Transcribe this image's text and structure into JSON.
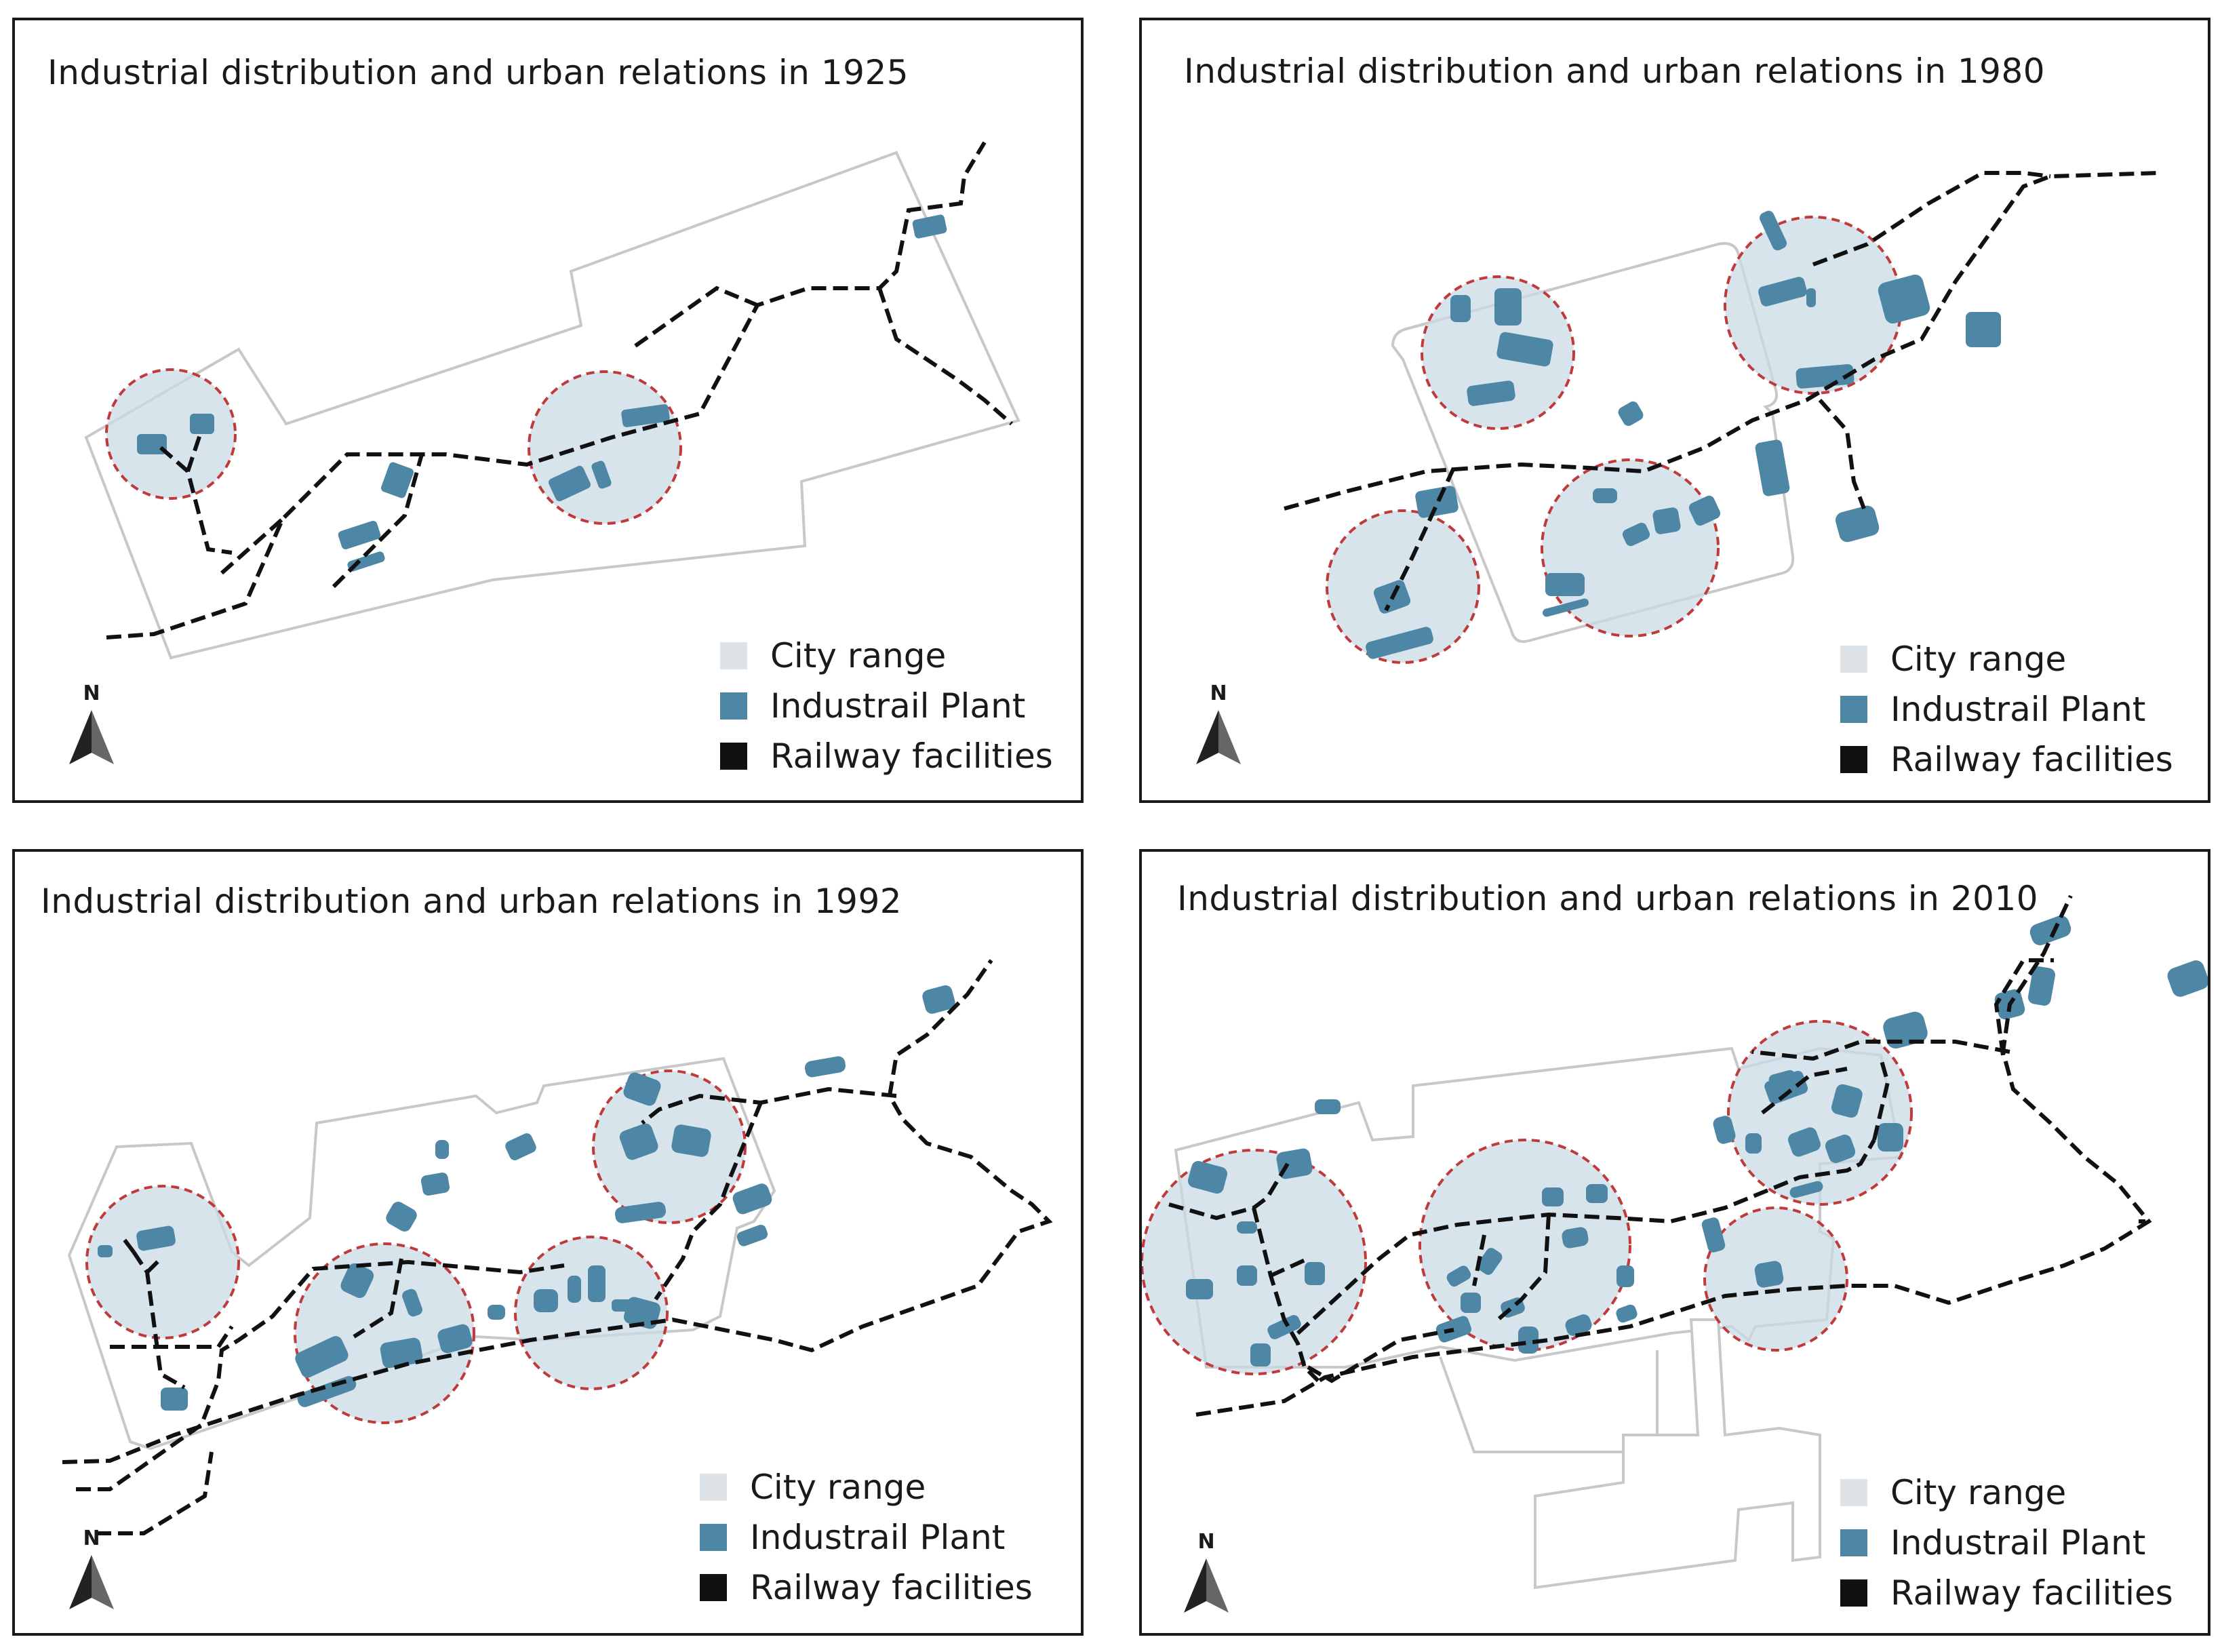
{
  "colors": {
    "city_range": "#dde3e7",
    "industrial_plant": "#4e87a5",
    "railway": "#111111",
    "buffer_fill": "#c9dbe6",
    "buffer_stroke": "#c0393b",
    "city_outline": "#c8c8c8"
  },
  "north_label": "N",
  "panels": [
    {
      "title": "Industrial distribution and urban relations in 1925",
      "legend": [
        "City range",
        "Industrail Plant",
        "Railway facilities"
      ]
    },
    {
      "title": "Industrial distribution and urban relations in 1980",
      "legend": [
        "City range",
        "Industrail Plant",
        "Railway facilities"
      ]
    },
    {
      "title": "Industrial distribution and urban relations in 1992",
      "legend": [
        "City range",
        "Industrail Plant",
        "Railway facilities"
      ]
    },
    {
      "title": "Industrial distribution and urban relations in 2010",
      "legend": [
        "City range",
        "Industrail Plant",
        "Railway facilities"
      ]
    }
  ]
}
